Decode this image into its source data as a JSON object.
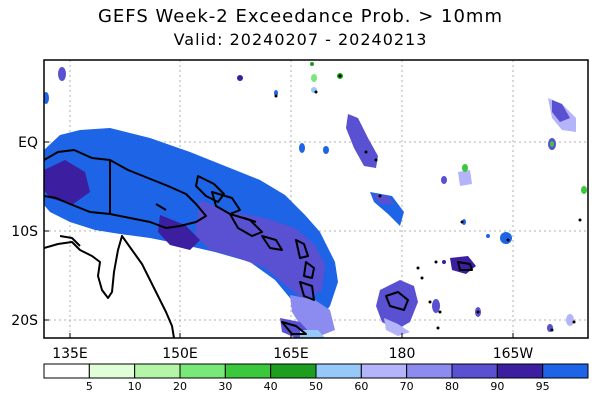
{
  "title": "GEFS Week-2 Exceedance Prob. > 10mm",
  "subtitle": "Valid: 20240207 - 20240213",
  "map": {
    "lon_labels": [
      "135E",
      "150E",
      "165E",
      "180",
      "165W"
    ],
    "lat_labels": [
      "EQ",
      "10S",
      "20S"
    ]
  },
  "colorbar": {
    "labels": [
      "5",
      "10",
      "20",
      "30",
      "40",
      "50",
      "60",
      "70",
      "80",
      "90",
      "95"
    ],
    "colors": [
      "#ffffff",
      "#e0ffd8",
      "#b4f5a8",
      "#78e878",
      "#3cc83c",
      "#1e9e1e",
      "#96c8fa",
      "#b4b4fa",
      "#8c8cf0",
      "#5a50d2",
      "#3c1ea0",
      "#1e64e6"
    ]
  }
}
